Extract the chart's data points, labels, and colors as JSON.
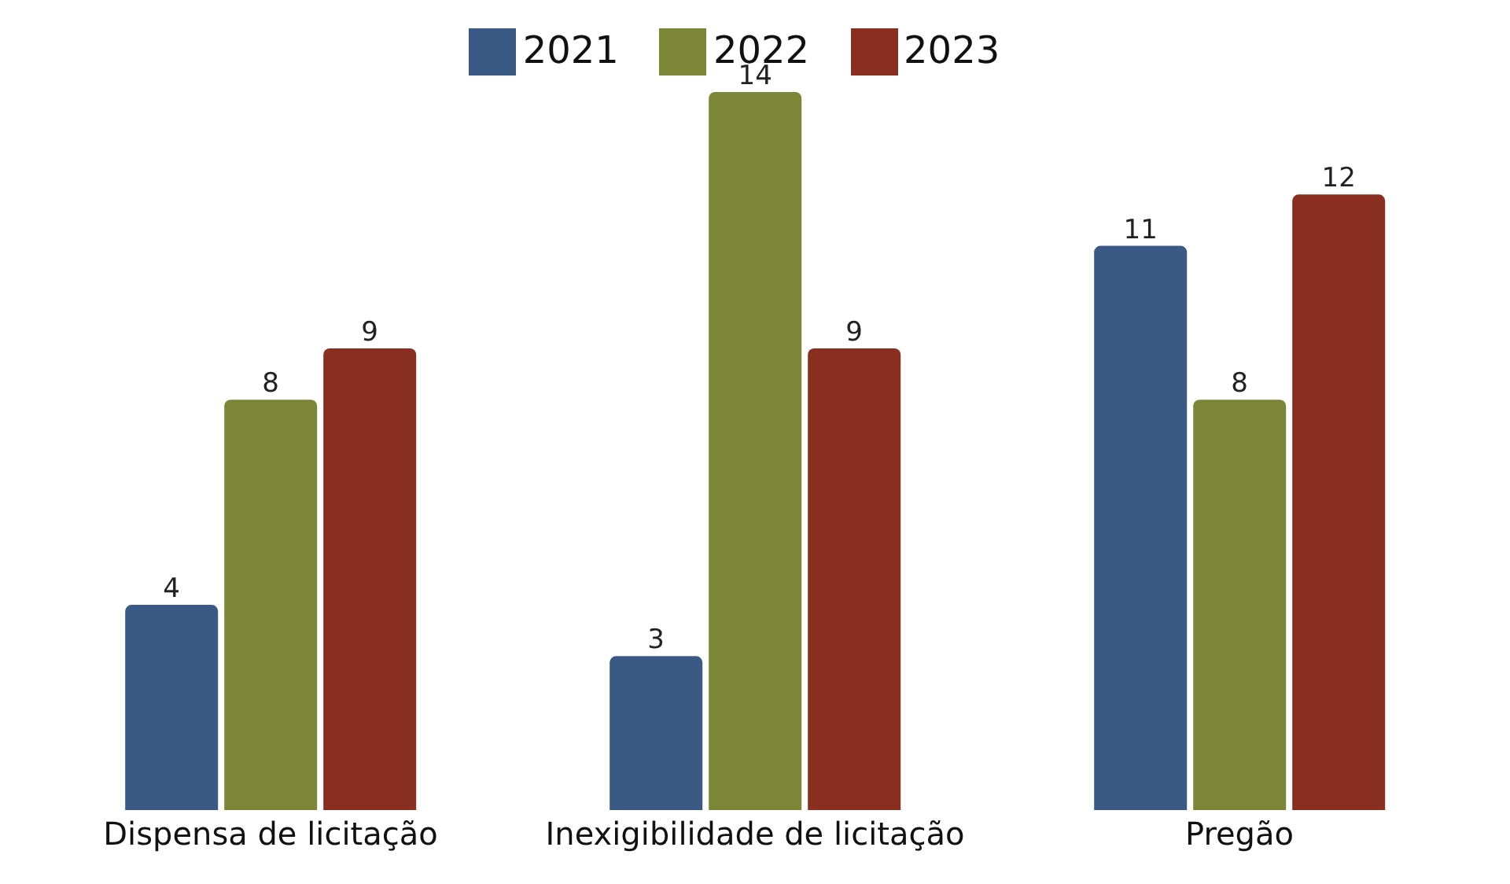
{
  "chart_data": {
    "type": "bar",
    "categories": [
      "Dispensa de licitação",
      "Inexigibilidade de licitação",
      "Pregão"
    ],
    "series": [
      {
        "name": "2021",
        "color": "#3a5a85",
        "values": [
          4,
          3,
          11
        ]
      },
      {
        "name": "2022",
        "color": "#7b8736",
        "values": [
          8,
          14,
          8
        ]
      },
      {
        "name": "2023",
        "color": "#8a2f1f",
        "values": [
          9,
          9,
          12
        ]
      }
    ],
    "data_labels": true,
    "legend": "top",
    "grid": false
  }
}
